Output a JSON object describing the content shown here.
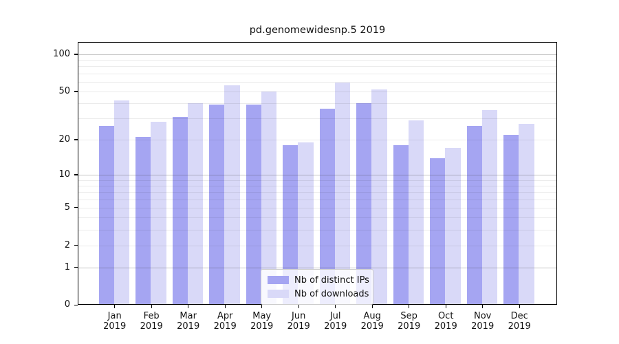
{
  "figure": {
    "title": "pd.genomewidesnp.5 2019"
  },
  "chart_data": {
    "type": "bar",
    "title": "pd.genomewidesnp.5 2019",
    "categories": [
      "Jan 2019",
      "Feb 2019",
      "Mar 2019",
      "Apr 2019",
      "May 2019",
      "Jun 2019",
      "Jul 2019",
      "Aug 2019",
      "Sep 2019",
      "Oct 2019",
      "Nov 2019",
      "Dec 2019"
    ],
    "x_months": [
      "Jan",
      "Feb",
      "Mar",
      "Apr",
      "May",
      "Jun",
      "Jul",
      "Aug",
      "Sep",
      "Oct",
      "Nov",
      "Dec"
    ],
    "x_year": "2019",
    "series": [
      {
        "name": "Nb of distinct IPs",
        "color": "#a5a5f2",
        "values": [
          26,
          21,
          31,
          39,
          39,
          18,
          36,
          40,
          18,
          14,
          26,
          22
        ]
      },
      {
        "name": "Nb of downloads",
        "color": "#d9d9f8",
        "values": [
          42,
          28,
          40,
          56,
          50,
          19,
          59,
          52,
          29,
          17,
          35,
          27
        ]
      }
    ],
    "yscale": "log1p",
    "ylim": [
      0,
      126
    ],
    "yticks": [
      0,
      1,
      2,
      5,
      10,
      20,
      50,
      100
    ],
    "ytick_labels": [
      "0",
      "1",
      "2",
      "5",
      "10",
      "20",
      "50",
      "100"
    ],
    "major_gridlines": [
      1,
      10,
      100
    ],
    "minor_gridlines": [
      2,
      3,
      4,
      5,
      6,
      7,
      8,
      9,
      20,
      30,
      40,
      50,
      60,
      70,
      80,
      90
    ],
    "grid": "horizontal",
    "legend_position": "lower-center"
  },
  "legend": {
    "items": [
      {
        "label": "Nb of distinct IPs",
        "color": "#a5a5f2"
      },
      {
        "label": "Nb of downloads",
        "color": "#d9d9f8"
      }
    ]
  },
  "colors": {
    "bar_distinct_ips": "#a5a5f2",
    "bar_downloads": "#d9d9f8",
    "grid_minor": "#e8e8e8",
    "grid_major": "#b0b0b0",
    "spine": "#000000",
    "text": "#111111",
    "legend_border": "#cccccc"
  }
}
